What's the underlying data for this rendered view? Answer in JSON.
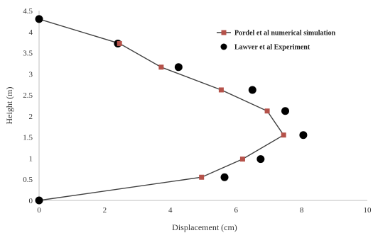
{
  "chart_data": {
    "type": "line",
    "xlabel": "Displacement (cm)",
    "ylabel": "Height (m)",
    "xlim": [
      0,
      10
    ],
    "ylim": [
      0,
      4.5
    ],
    "x_ticks": [
      0,
      2,
      4,
      6,
      8,
      10
    ],
    "y_ticks": [
      0,
      0.5,
      1,
      1.5,
      2,
      2.5,
      3,
      3.5,
      4,
      4.5
    ],
    "x_tick_labels": [
      "0",
      "2",
      "4",
      "6",
      "8",
      "10"
    ],
    "y_tick_labels": [
      "0",
      "0.5",
      "1",
      "1.5",
      "2",
      "2.5",
      "3",
      "3.5",
      "4",
      "4.5"
    ],
    "grid": false,
    "legend_position": "top-right",
    "series": [
      {
        "name": "Pordel et al numerical simulation",
        "kind": "line-with-square-markers",
        "line_color": "#404040",
        "marker_color": "#b5524a",
        "points": [
          {
            "x": 0,
            "y": 4.3
          },
          {
            "x": 2.45,
            "y": 3.72
          },
          {
            "x": 3.72,
            "y": 3.16
          },
          {
            "x": 5.55,
            "y": 2.62
          },
          {
            "x": 6.95,
            "y": 2.12
          },
          {
            "x": 7.45,
            "y": 1.55
          },
          {
            "x": 6.2,
            "y": 0.98
          },
          {
            "x": 4.95,
            "y": 0.55
          },
          {
            "x": 0,
            "y": 0
          }
        ]
      },
      {
        "name": "Lawver et al Experiment",
        "kind": "scatter-circles",
        "marker_color": "#000000",
        "points": [
          {
            "x": 0,
            "y": 4.3
          },
          {
            "x": 2.4,
            "y": 3.72
          },
          {
            "x": 4.25,
            "y": 3.16
          },
          {
            "x": 6.5,
            "y": 2.62
          },
          {
            "x": 7.5,
            "y": 2.12
          },
          {
            "x": 8.05,
            "y": 1.55
          },
          {
            "x": 6.75,
            "y": 0.98
          },
          {
            "x": 5.65,
            "y": 0.55
          },
          {
            "x": 0,
            "y": 0
          }
        ]
      }
    ]
  }
}
